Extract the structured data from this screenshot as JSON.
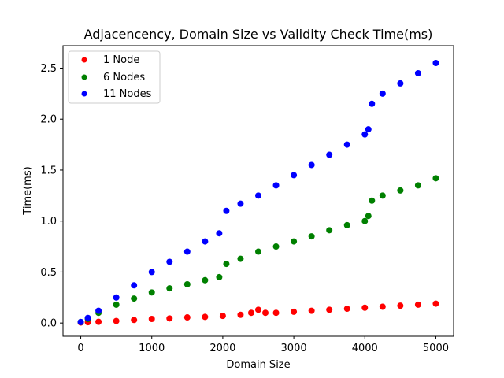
{
  "chart_data": {
    "type": "scatter",
    "title": "Adjacencency, Domain Size vs Validity Check Time(ms)",
    "xlabel": "Domain Size",
    "ylabel": "Time(ms)",
    "xlim": [
      -250,
      5250
    ],
    "ylim": [
      -0.13,
      2.72
    ],
    "xticks": [
      0,
      1000,
      2000,
      3000,
      4000,
      5000
    ],
    "xtick_labels": [
      "0",
      "1000",
      "2000",
      "3000",
      "4000",
      "5000"
    ],
    "yticks": [
      0.0,
      0.5,
      1.0,
      1.5,
      2.0,
      2.5
    ],
    "ytick_labels": [
      "0.0",
      "0.5",
      "1.0",
      "1.5",
      "2.0",
      "2.5"
    ],
    "grid": false,
    "legend_position": "top-left",
    "series": [
      {
        "name": "1 Node",
        "color": "#ff0000",
        "x": [
          0,
          100,
          250,
          500,
          750,
          1000,
          1250,
          1500,
          1750,
          2000,
          2250,
          2400,
          2500,
          2600,
          2750,
          3000,
          3250,
          3500,
          3750,
          4000,
          4250,
          4500,
          4750,
          5000
        ],
        "y": [
          0.005,
          0.008,
          0.012,
          0.02,
          0.03,
          0.04,
          0.045,
          0.055,
          0.06,
          0.07,
          0.08,
          0.1,
          0.13,
          0.1,
          0.1,
          0.11,
          0.12,
          0.13,
          0.14,
          0.15,
          0.16,
          0.17,
          0.18,
          0.19
        ]
      },
      {
        "name": "6 Nodes",
        "color": "#008000",
        "x": [
          0,
          100,
          250,
          500,
          750,
          1000,
          1250,
          1500,
          1750,
          1950,
          2050,
          2250,
          2500,
          2750,
          3000,
          3250,
          3500,
          3750,
          4000,
          4050,
          4100,
          4250,
          4500,
          4750,
          5000
        ],
        "y": [
          0.01,
          0.04,
          0.1,
          0.18,
          0.24,
          0.3,
          0.34,
          0.38,
          0.42,
          0.45,
          0.58,
          0.63,
          0.7,
          0.75,
          0.8,
          0.85,
          0.91,
          0.96,
          1.0,
          1.05,
          1.2,
          1.25,
          1.3,
          1.35,
          1.42
        ]
      },
      {
        "name": "11 Nodes",
        "color": "#0000ff",
        "x": [
          0,
          100,
          250,
          500,
          750,
          1000,
          1250,
          1500,
          1750,
          1950,
          2050,
          2250,
          2500,
          2750,
          3000,
          3250,
          3500,
          3750,
          4000,
          4050,
          4100,
          4250,
          4500,
          4750,
          5000
        ],
        "y": [
          0.01,
          0.05,
          0.12,
          0.25,
          0.37,
          0.5,
          0.6,
          0.7,
          0.8,
          0.88,
          1.1,
          1.17,
          1.25,
          1.35,
          1.45,
          1.55,
          1.65,
          1.75,
          1.85,
          1.9,
          2.15,
          2.25,
          2.35,
          2.45,
          2.55
        ]
      }
    ]
  }
}
